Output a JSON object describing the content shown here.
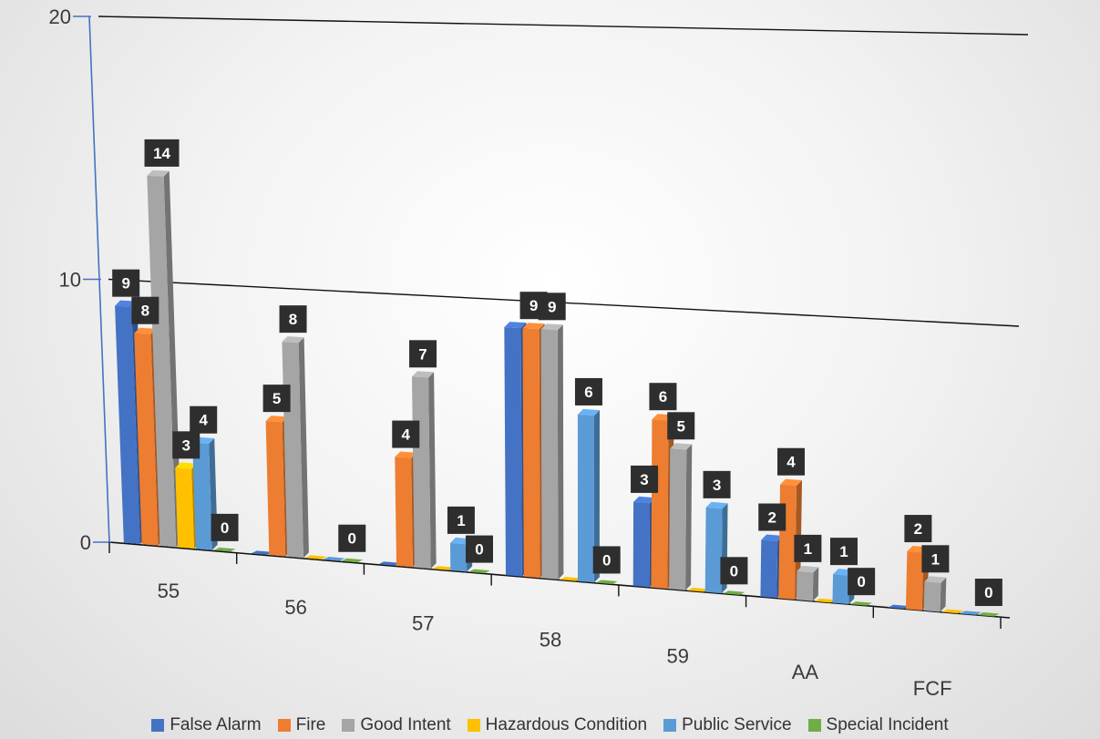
{
  "chart_data": {
    "type": "bar",
    "categories": [
      "55",
      "56",
      "57",
      "58",
      "59",
      "AA",
      "FCF"
    ],
    "series": [
      {
        "name": "False Alarm",
        "color": "#4472C4",
        "values": [
          9,
          0,
          0,
          9,
          3,
          2,
          0
        ]
      },
      {
        "name": "Fire",
        "color": "#ED7D31",
        "values": [
          8,
          5,
          4,
          9,
          6,
          4,
          2
        ]
      },
      {
        "name": "Good Intent",
        "color": "#A5A5A5",
        "values": [
          14,
          8,
          7,
          9,
          5,
          1,
          1
        ]
      },
      {
        "name": "Hazardous Condition",
        "color": "#FFC000",
        "values": [
          3,
          0,
          0,
          0,
          0,
          0,
          0
        ]
      },
      {
        "name": "Public Service",
        "color": "#5B9BD5",
        "values": [
          4,
          0,
          1,
          6,
          3,
          1,
          0
        ]
      },
      {
        "name": "Special Incident",
        "color": "#70AD47",
        "values": [
          0,
          0,
          0,
          0,
          0,
          0,
          0
        ]
      }
    ],
    "data_labels": [
      {
        "category": "55",
        "labels": [
          {
            "series": "False Alarm",
            "text": "9"
          },
          {
            "series": "Fire",
            "text": "8"
          },
          {
            "series": "Good Intent",
            "text": "14"
          },
          {
            "series": "Hazardous Condition",
            "text": "3"
          },
          {
            "series": "Public Service",
            "text": "4"
          },
          {
            "series": "Special Incident",
            "text": "0"
          }
        ]
      },
      {
        "category": "56",
        "labels": [
          {
            "series": "Fire",
            "text": "5"
          },
          {
            "series": "Good Intent",
            "text": "8"
          },
          {
            "series": "Special Incident",
            "text": "0"
          }
        ]
      },
      {
        "category": "57",
        "labels": [
          {
            "series": "Fire",
            "text": "4"
          },
          {
            "series": "Good Intent",
            "text": "7"
          },
          {
            "series": "Public Service",
            "text": "1"
          },
          {
            "series": "Special Incident",
            "text": "0"
          }
        ]
      },
      {
        "category": "58",
        "labels": [
          {
            "series": "Fire",
            "text": "9"
          },
          {
            "series": "Good Intent",
            "text": "9"
          },
          {
            "series": "Public Service",
            "text": "6"
          },
          {
            "series": "Special Incident",
            "text": "0"
          }
        ]
      },
      {
        "category": "59",
        "labels": [
          {
            "series": "False Alarm",
            "text": "3"
          },
          {
            "series": "Fire",
            "text": "6"
          },
          {
            "series": "Good Intent",
            "text": "5"
          },
          {
            "series": "Public Service",
            "text": "3"
          },
          {
            "series": "Special Incident",
            "text": "0"
          }
        ]
      },
      {
        "category": "AA",
        "labels": [
          {
            "series": "False Alarm",
            "text": "2"
          },
          {
            "series": "Fire",
            "text": "4"
          },
          {
            "series": "Good Intent",
            "text": "1"
          },
          {
            "series": "Public Service",
            "text": "1"
          },
          {
            "series": "Special Incident",
            "text": "0"
          }
        ]
      },
      {
        "category": "FCF",
        "labels": [
          {
            "series": "Fire",
            "text": "2"
          },
          {
            "series": "Good Intent",
            "text": "1"
          },
          {
            "series": "Special Incident",
            "text": "0"
          }
        ]
      }
    ],
    "y_ticks": [
      "0",
      "10",
      "20"
    ],
    "ylim": [
      0,
      20
    ],
    "grid": true,
    "style": "3d-perspective",
    "legend_position": "bottom"
  }
}
